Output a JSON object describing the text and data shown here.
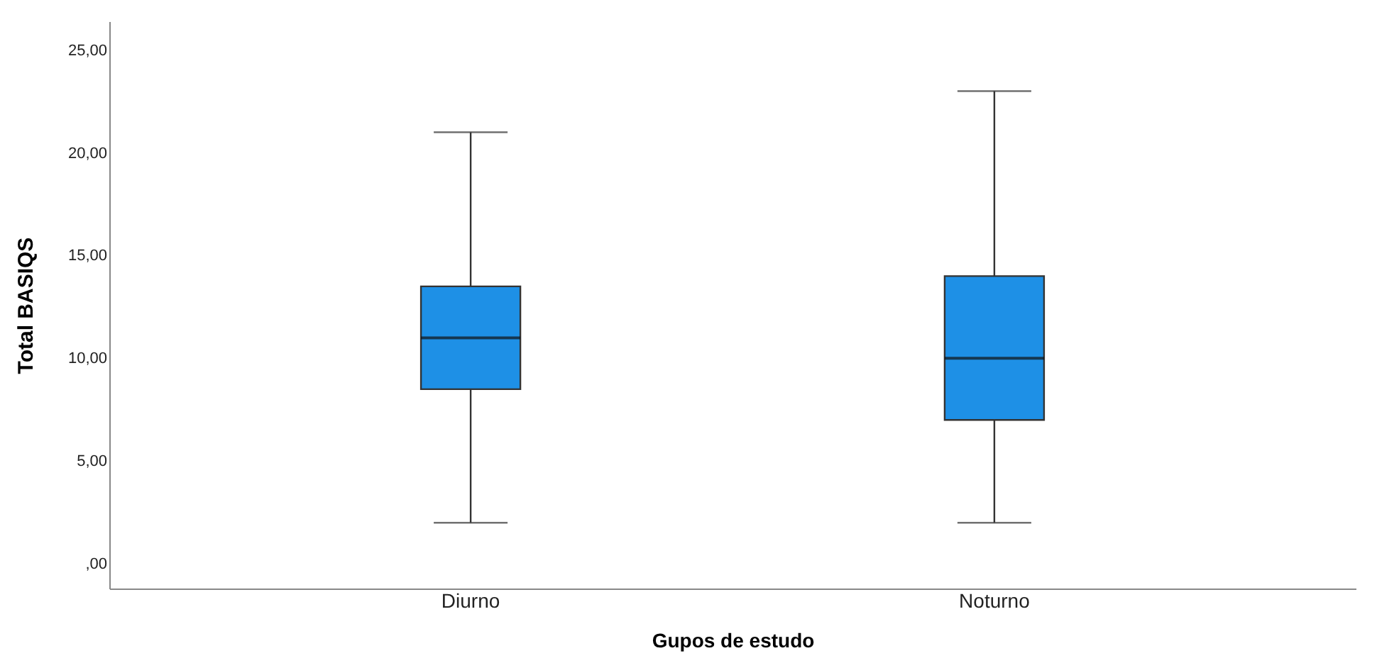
{
  "chart_data": {
    "type": "box",
    "xlabel": "Gupos de estudo",
    "ylabel": "Total BASIQS",
    "categories": [
      "Diurno",
      "Noturno"
    ],
    "boxes": [
      {
        "low": 2,
        "q1": 8.5,
        "median": 11,
        "q3": 13.5,
        "high": 21
      },
      {
        "low": 2,
        "q1": 7,
        "median": 10,
        "q3": 14,
        "high": 23
      }
    ],
    "color": "#1e90e6",
    "ylim": [
      -1.2,
      26.4
    ],
    "yticks": [
      {
        "value": 0,
        "label": ",00"
      },
      {
        "value": 5,
        "label": "5,00"
      },
      {
        "value": 10,
        "label": "10,00"
      },
      {
        "value": 15,
        "label": "15,00"
      },
      {
        "value": 20,
        "label": "20,00"
      },
      {
        "value": 25,
        "label": "25,00"
      }
    ],
    "grid": false
  }
}
